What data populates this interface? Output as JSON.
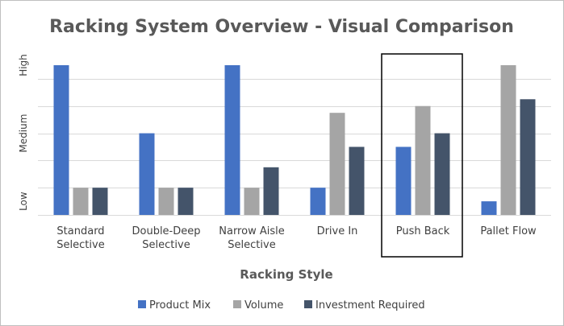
{
  "chart_data": {
    "type": "bar",
    "title": "Racking System Overview - Visual Comparison",
    "xlabel": "Racking Style",
    "ylabel": "",
    "categories": [
      [
        "Standard",
        "Selective"
      ],
      [
        "Double-Deep",
        "Selective"
      ],
      [
        "Narrow Aisle",
        "Selective"
      ],
      [
        "Drive In"
      ],
      [
        "Push Back"
      ],
      [
        "Pallet Flow"
      ]
    ],
    "y_tick_labels": [
      "Low",
      "Medium",
      "High"
    ],
    "ylim": [
      0,
      11
    ],
    "y_tick_positions": [
      1,
      6,
      11
    ],
    "series": [
      {
        "name": "Product Mix",
        "color": "#4472c4",
        "values": [
          11,
          6,
          11,
          2,
          5,
          1
        ]
      },
      {
        "name": "Volume",
        "color": "#a5a5a5",
        "values": [
          2,
          2,
          2,
          7.5,
          8,
          11
        ]
      },
      {
        "name": "Investment Required",
        "color": "#44546a",
        "values": [
          2,
          2,
          3.5,
          5,
          6,
          8.5
        ]
      }
    ],
    "grid": true,
    "legend_position": "bottom",
    "highlighted_category": "Push Back"
  }
}
